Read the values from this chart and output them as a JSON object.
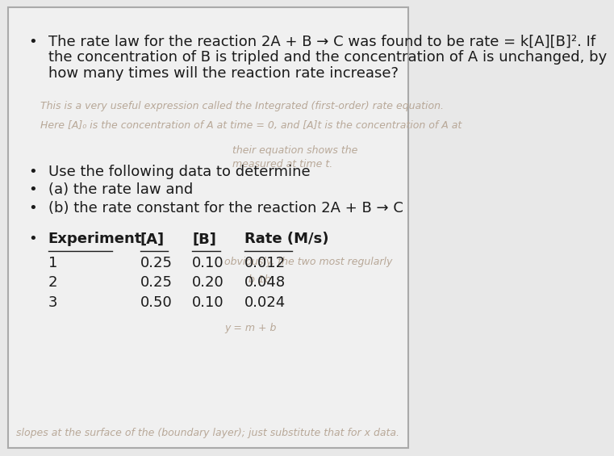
{
  "background_color": "#e8e8e8",
  "content_bg_color": "#f0f0f0",
  "bullet1_line1": "The rate law for the reaction 2A + B → C was found to be rate = k[A][B]². If",
  "bullet1_line2": "the concentration of B is tripled and the concentration of A is unchanged, by",
  "bullet1_line3": "how many times will the reaction rate increase?",
  "bullet2": "Use the following data to determine",
  "bullet3": "(a) the rate law and",
  "bullet4": "(b) the rate constant for the reaction 2A + B → C",
  "table_header": [
    "Experiment",
    "[A]",
    "[B]",
    "Rate (M/s)"
  ],
  "table_rows": [
    [
      "1",
      "0.25",
      "0.10",
      "0.012"
    ],
    [
      "2",
      "0.25",
      "0.20",
      "0.048"
    ],
    [
      "3",
      "0.50",
      "0.10",
      "0.024"
    ]
  ],
  "faded_text1": "This is a very useful expression called the Integrated (first-order) rate equation.",
  "faded_text2": "Here [A]₀ is the concentration of A at time = 0, and [A]t is the concentration of A at",
  "faded_text3": "their equation shows the",
  "faded_text4": "measured at time t.",
  "faded_text5": "obviously, the two most regularly",
  "faded_text6": "b 1b",
  "faded_text7": "y = m + b",
  "faded_text8": "slopes at the surface of the (boundary layer); just substitute that for x data.",
  "font_size_body": 13,
  "font_size_faded": 9,
  "text_color": "#1a1a1a",
  "faded_color": "#b8a898",
  "border_color": "#aaaaaa"
}
